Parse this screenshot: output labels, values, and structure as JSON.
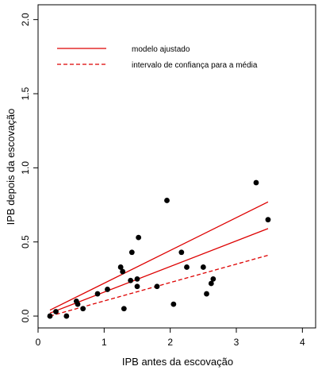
{
  "chart_data": {
    "type": "scatter",
    "xlabel": "IPB antes da escovação",
    "ylabel": "IPB depois da escovação",
    "xlim": [
      0,
      4.2
    ],
    "ylim": [
      -0.08,
      2.1
    ],
    "xticks": [
      0,
      1,
      2,
      3,
      4
    ],
    "yticks": [
      0.0,
      0.5,
      1.0,
      1.5,
      2.0
    ],
    "xtick_labels": [
      "0",
      "1",
      "2",
      "3",
      "4"
    ],
    "ytick_labels": [
      "0.0",
      "0.5",
      "1.0",
      "1.5",
      "2.0"
    ],
    "grid": false,
    "legend": {
      "placement": "top-left",
      "entries": [
        {
          "label": "modelo ajustado",
          "style": "solid"
        },
        {
          "label": "intervalo de confiança para a média",
          "style": "dashed"
        }
      ]
    },
    "line_color": "#dd0000",
    "point_color": "#000000",
    "points": [
      {
        "x": 0.18,
        "y": 0.0
      },
      {
        "x": 0.27,
        "y": 0.03
      },
      {
        "x": 0.43,
        "y": 0.0
      },
      {
        "x": 0.58,
        "y": 0.1
      },
      {
        "x": 0.6,
        "y": 0.08
      },
      {
        "x": 0.68,
        "y": 0.05
      },
      {
        "x": 0.9,
        "y": 0.15
      },
      {
        "x": 1.05,
        "y": 0.18
      },
      {
        "x": 1.25,
        "y": 0.33
      },
      {
        "x": 1.28,
        "y": 0.3
      },
      {
        "x": 1.3,
        "y": 0.05
      },
      {
        "x": 1.4,
        "y": 0.24
      },
      {
        "x": 1.42,
        "y": 0.43
      },
      {
        "x": 1.5,
        "y": 0.25
      },
      {
        "x": 1.5,
        "y": 0.2
      },
      {
        "x": 1.52,
        "y": 0.53
      },
      {
        "x": 1.8,
        "y": 0.2
      },
      {
        "x": 1.95,
        "y": 0.78
      },
      {
        "x": 2.05,
        "y": 0.08
      },
      {
        "x": 2.17,
        "y": 0.43
      },
      {
        "x": 2.25,
        "y": 0.33
      },
      {
        "x": 2.5,
        "y": 0.33
      },
      {
        "x": 2.55,
        "y": 0.15
      },
      {
        "x": 2.62,
        "y": 0.22
      },
      {
        "x": 2.65,
        "y": 0.25
      },
      {
        "x": 3.3,
        "y": 0.9
      },
      {
        "x": 3.48,
        "y": 0.65
      }
    ],
    "fitted_line": {
      "x": [
        0.18,
        3.48
      ],
      "y": [
        0.02,
        0.59
      ]
    },
    "ci_upper": {
      "x": [
        0.18,
        3.48
      ],
      "y": [
        0.04,
        0.77
      ]
    },
    "ci_lower": {
      "x": [
        0.18,
        3.48
      ],
      "y": [
        0.0,
        0.41
      ]
    }
  }
}
